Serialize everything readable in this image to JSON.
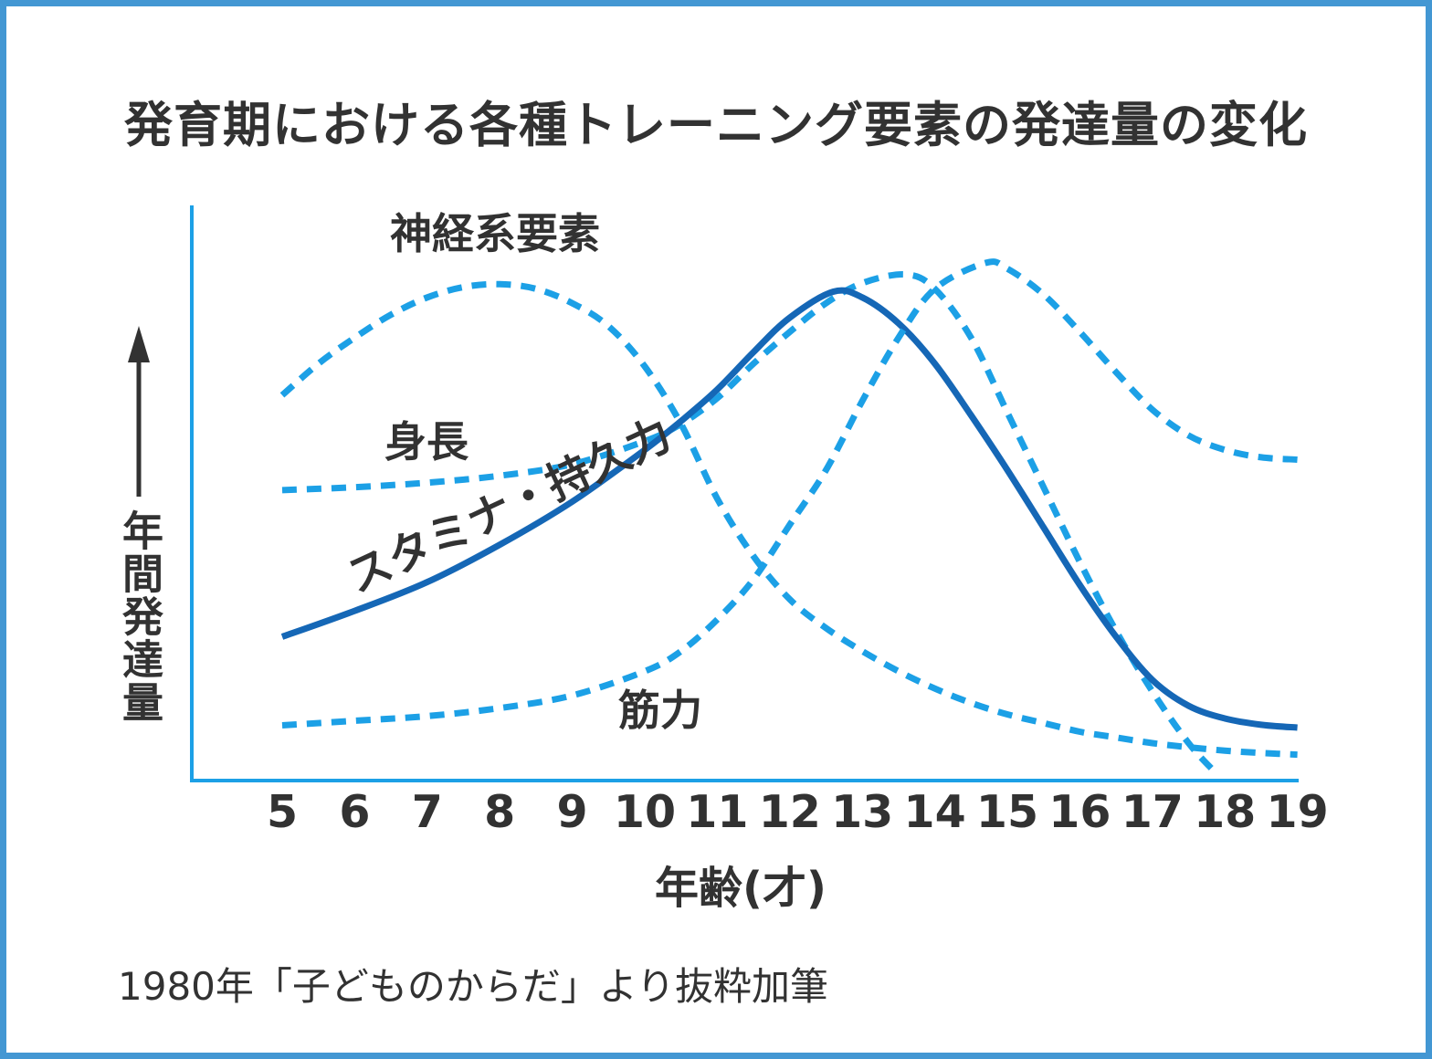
{
  "title": "発育期における各種トレーニング要素の発達量の変化",
  "footer": "1980年「子どものからだ」より抜粋加筆",
  "colors": {
    "frame_border": "#4397D3",
    "axis": "#1CA0E6",
    "dashed_curve": "#1CA0E6",
    "solid_curve": "#1567B6",
    "text": "#323232",
    "background": "#FFFFFF"
  },
  "x_axis": {
    "label": "年齢(才)"
  },
  "y_axis": {
    "label": "年間発達量"
  },
  "chart_data": {
    "type": "line",
    "title": "発育期における各種トレーニング要素の発達量の変化",
    "xlabel": "年齢(才)",
    "ylabel": "年間発達量",
    "source_note": "1980年「子どものからだ」より抜粋加筆",
    "x_ticks": [
      5,
      6,
      7,
      8,
      9,
      10,
      11,
      12,
      13,
      14,
      15,
      16,
      17,
      18,
      19
    ],
    "xlim": [
      5,
      19
    ],
    "ylim": [
      0,
      100
    ],
    "grid": false,
    "legend_position": "inline-labels-next-to-curves",
    "series": [
      {
        "key": "nervous-system",
        "name": "神経系要素",
        "line_style": "dashed",
        "color": "#1CA0E6",
        "points": [
          [
            5,
            67
          ],
          [
            5.5,
            72.5
          ],
          [
            6,
            77
          ],
          [
            6.5,
            81
          ],
          [
            7,
            84
          ],
          [
            7.5,
            85.8
          ],
          [
            8,
            86.3
          ],
          [
            8.5,
            85.5
          ],
          [
            9,
            83
          ],
          [
            9.5,
            79
          ],
          [
            10,
            72
          ],
          [
            10.5,
            62
          ],
          [
            11,
            49
          ],
          [
            11.5,
            39
          ],
          [
            12,
            31.5
          ],
          [
            12.5,
            26.5
          ],
          [
            13,
            22.5
          ],
          [
            13.5,
            19
          ],
          [
            14,
            16
          ],
          [
            14.5,
            13.5
          ],
          [
            15,
            11.5
          ],
          [
            15.5,
            10
          ],
          [
            16,
            8.5
          ],
          [
            16.5,
            7.5
          ],
          [
            17,
            6.5
          ],
          [
            17.5,
            5.8
          ],
          [
            18,
            5.2
          ],
          [
            18.5,
            4.8
          ],
          [
            19,
            4.5
          ]
        ]
      },
      {
        "key": "height",
        "name": "身長",
        "line_style": "dashed",
        "color": "#1CA0E6",
        "points": [
          [
            5,
            50.5
          ],
          [
            6,
            51
          ],
          [
            7,
            51.8
          ],
          [
            8,
            53
          ],
          [
            9,
            55
          ],
          [
            10,
            59
          ],
          [
            10.5,
            62
          ],
          [
            11,
            66.5
          ],
          [
            11.5,
            72.5
          ],
          [
            12,
            78
          ],
          [
            12.5,
            83
          ],
          [
            13,
            86.5
          ],
          [
            13.6,
            88
          ],
          [
            14,
            85.5
          ],
          [
            14.5,
            77
          ],
          [
            15,
            64
          ],
          [
            15.5,
            51
          ],
          [
            16,
            38
          ],
          [
            16.5,
            26
          ],
          [
            17,
            15.5
          ],
          [
            17.5,
            6.5
          ],
          [
            17.9,
            1
          ]
        ]
      },
      {
        "key": "stamina-endurance",
        "name": "スタミナ・持久力",
        "line_style": "solid",
        "color": "#1567B6",
        "points": [
          [
            5,
            25
          ],
          [
            6,
            29.5
          ],
          [
            7,
            34.5
          ],
          [
            8,
            41
          ],
          [
            9,
            48.5
          ],
          [
            10,
            57.5
          ],
          [
            10.5,
            62.5
          ],
          [
            11,
            68
          ],
          [
            11.5,
            74.5
          ],
          [
            12,
            80.5
          ],
          [
            12.6,
            85
          ],
          [
            13,
            84
          ],
          [
            13.5,
            79.5
          ],
          [
            14,
            72.5
          ],
          [
            14.5,
            63.5
          ],
          [
            15,
            54
          ],
          [
            15.5,
            44
          ],
          [
            16,
            34
          ],
          [
            16.5,
            25
          ],
          [
            17,
            17.5
          ],
          [
            17.5,
            13
          ],
          [
            18,
            10.8
          ],
          [
            18.5,
            9.7
          ],
          [
            19,
            9.2
          ]
        ]
      },
      {
        "key": "muscle-strength",
        "name": "筋力",
        "line_style": "dashed",
        "color": "#1CA0E6",
        "points": [
          [
            5,
            9.6
          ],
          [
            6,
            10.4
          ],
          [
            7,
            11.2
          ],
          [
            8,
            12.6
          ],
          [
            9,
            14.8
          ],
          [
            10,
            19
          ],
          [
            10.5,
            22.5
          ],
          [
            11,
            28
          ],
          [
            11.5,
            35
          ],
          [
            12,
            44.5
          ],
          [
            12.5,
            54
          ],
          [
            13,
            66
          ],
          [
            13.5,
            77
          ],
          [
            14,
            85.5
          ],
          [
            14.7,
            90
          ],
          [
            15,
            89
          ],
          [
            15.5,
            84.5
          ],
          [
            16,
            78
          ],
          [
            16.5,
            71
          ],
          [
            17,
            64.5
          ],
          [
            17.5,
            60
          ],
          [
            18,
            57.5
          ],
          [
            18.5,
            56.2
          ],
          [
            19,
            55.8
          ]
        ]
      }
    ]
  }
}
